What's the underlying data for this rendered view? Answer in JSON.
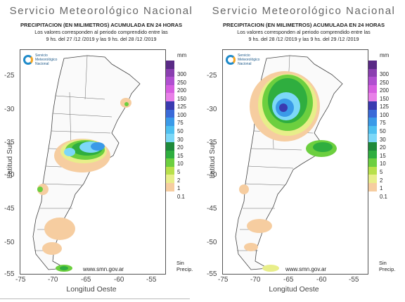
{
  "panels": [
    {
      "title": "Servicio Meteorológico Nacional",
      "subtitle1": "PRECIPITACION (EN MILIMETROS) ACUMULADA EN 24 HORAS",
      "subtitle2": "Los valores corresponden al periodo comprendido entre las",
      "subtitle3": "9 hs. del 27 /12 /2019  y las 9 hs. del 28 /12 /2019",
      "url": "www.smn.gov.ar",
      "xlabel": "Longitud Oeste",
      "ylabel": "Latitud Sur",
      "logo_text": [
        "Servicio",
        "Meteorológico",
        "Nacional"
      ]
    },
    {
      "title": "Servicio Meteorológico Nacional",
      "subtitle1": "PRECIPITACION (EN MILIMETROS) ACUMULADA EN 24 HORAS",
      "subtitle2": "Los valores corresponden al periodo comprendido entre las",
      "subtitle3": "9 hs. del 28 /12 /2019  y las 9 hs. del 29 /12 /2019",
      "url": "www.smn.gov.ar",
      "xlabel": "Longitud Oeste",
      "ylabel": "Latitud Sur",
      "logo_text": [
        "Servicio",
        "Meteorológico",
        "Nacional"
      ]
    }
  ],
  "axes": {
    "y_ticks": [
      "-25",
      "-30",
      "-35",
      "-40",
      "-45",
      "-50",
      "-55"
    ],
    "x_ticks": [
      "-75",
      "-70",
      "-65",
      "-60",
      "-55"
    ]
  },
  "legend": {
    "unit": "mm",
    "labels": [
      "300",
      "250",
      "200",
      "150",
      "125",
      "100",
      "75",
      "50",
      "30",
      "20",
      "15",
      "10",
      "5",
      "2",
      "1",
      "0.1"
    ],
    "no_precip": [
      "Sin",
      "Precip."
    ],
    "colors": [
      "#5a2a86",
      "#8a3fb0",
      "#b04fd0",
      "#d65ee0",
      "#e880e8",
      "#3a3ab0",
      "#3a6ad8",
      "#3a9ae8",
      "#4ec0f0",
      "#7cd8f8",
      "#1e8a3a",
      "#2fae3f",
      "#6ccf3f",
      "#b8e04a",
      "#e8ee8a",
      "#f6cda0"
    ]
  }
}
